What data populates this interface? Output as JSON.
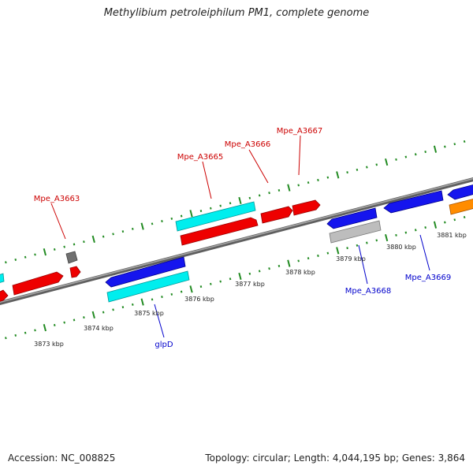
{
  "title": "Methylibium petroleiphilum PM1, complete genome",
  "footer": {
    "accession": "Accession: NC_008825",
    "summary": "Topology: circular; Length: 4,044,195 bp; Genes: 3,864"
  },
  "scale_labels": [
    "3873 kbp",
    "3874 kbp",
    "3875 kbp",
    "3876 kbp",
    "3877 kbp",
    "3878 kbp",
    "3879 kbp",
    "3880 kbp",
    "3881 kbp"
  ],
  "gene_labels": {
    "top": [
      "Mpe_A3663",
      "Mpe_A3665",
      "Mpe_A3666",
      "Mpe_A3667"
    ],
    "bottom": [
      "glpD",
      "Mpe_A3668",
      "Mpe_A3669"
    ]
  },
  "colors": {
    "backbone": "#7f7f7f",
    "ticks": "#228b22",
    "red": "#ee0000",
    "cyan": "#00eeee",
    "blue": "#1515ee",
    "grey": "#bdbdbd",
    "dark_grey": "#707070",
    "orange": "#ff8c00",
    "top_label": "#cc0000",
    "bottom_label": "#0000cc"
  }
}
